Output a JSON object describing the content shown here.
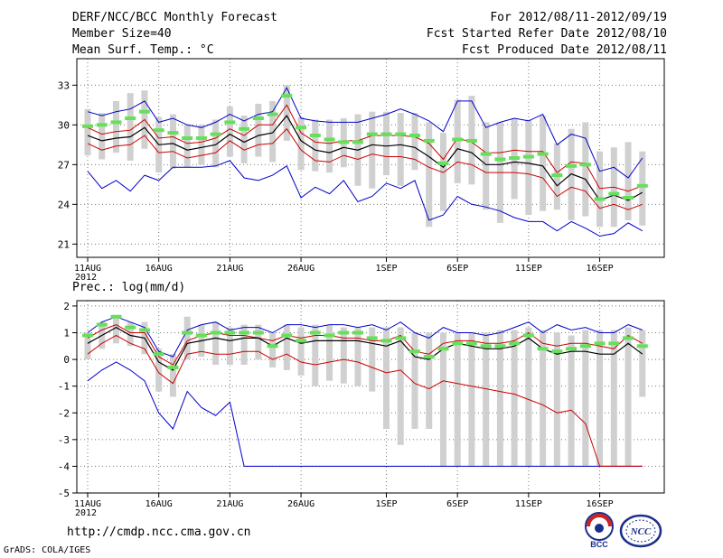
{
  "header": {
    "title": "DERF/NCC/BCC Monthly Forecast",
    "member_size": "Member Size=40",
    "variable": "Mean Surf. Temp.: °C",
    "period": "For 2012/08/11-2012/09/19",
    "fcst_started": "Fcst Started Refer Date 2012/08/10",
    "fcst_produced": "Fcst Produced Date 2012/08/11"
  },
  "footer": {
    "url": "http://cmdp.ncc.cma.gov.cn",
    "credit": "GrADS: COLA/IGES",
    "logo_left_text": "BCC",
    "logo_right_text": "NCC"
  },
  "colors": {
    "box": "#d0d0d0",
    "ensemble_mean": "#000000",
    "plus_minus_sd": "#cc0000",
    "max_min": "#0000cc",
    "forecast_marker": "#66e05a",
    "grid": "#777777"
  },
  "chart_data": [
    {
      "type": "line",
      "title": "Mean Surf. Temp.: °C",
      "x_start_label": "11AUG",
      "x_year_label": "2012",
      "days": 40,
      "xticks": [
        {
          "day": 0,
          "label": "11AUG"
        },
        {
          "day": 5,
          "label": "16AUG"
        },
        {
          "day": 10,
          "label": "21AUG"
        },
        {
          "day": 15,
          "label": "26AUG"
        },
        {
          "day": 21,
          "label": "1SEP"
        },
        {
          "day": 26,
          "label": "6SEP"
        },
        {
          "day": 31,
          "label": "11SEP"
        },
        {
          "day": 36,
          "label": "16SEP"
        }
      ],
      "ylim": [
        20,
        35
      ],
      "yticks": [
        21,
        24,
        27,
        30,
        33
      ],
      "series": [
        {
          "name": "max",
          "values": [
            31.0,
            30.7,
            31.0,
            31.2,
            31.8,
            30.2,
            30.5,
            30.0,
            29.8,
            30.2,
            30.8,
            30.3,
            30.8,
            31.0,
            32.8,
            30.5,
            30.3,
            30.2,
            30.2,
            30.2,
            30.5,
            30.8,
            31.2,
            30.8,
            30.3,
            29.5,
            31.8,
            31.8,
            29.8,
            30.2,
            30.5,
            30.3,
            30.8,
            28.5,
            29.3,
            29.0,
            26.5,
            26.8,
            26.0,
            27.5
          ]
        },
        {
          "name": "plus_sd",
          "values": [
            29.8,
            29.3,
            29.5,
            29.6,
            30.4,
            29.0,
            29.1,
            28.6,
            28.7,
            29.0,
            29.7,
            29.2,
            30.0,
            30.0,
            31.5,
            29.4,
            28.7,
            28.6,
            28.8,
            28.8,
            29.2,
            29.2,
            29.2,
            29.1,
            28.6,
            27.4,
            29.0,
            28.7,
            27.9,
            27.9,
            28.1,
            28.0,
            28.0,
            26.4,
            27.2,
            27.1,
            25.2,
            25.3,
            25.0,
            25.4
          ]
        },
        {
          "name": "mean",
          "values": [
            29.2,
            28.8,
            29.0,
            29.1,
            29.8,
            28.5,
            28.6,
            28.1,
            28.3,
            28.5,
            29.3,
            28.7,
            29.2,
            29.4,
            30.7,
            28.8,
            28.1,
            27.9,
            28.3,
            28.1,
            28.5,
            28.4,
            28.5,
            28.3,
            27.6,
            26.8,
            28.2,
            27.9,
            27.0,
            27.0,
            27.2,
            27.1,
            26.9,
            25.4,
            26.3,
            25.9,
            24.3,
            24.7,
            24.3,
            24.9
          ]
        },
        {
          "name": "minus_sd",
          "values": [
            28.6,
            28.1,
            28.4,
            28.5,
            29.2,
            27.9,
            28.0,
            27.5,
            27.7,
            27.9,
            28.8,
            28.1,
            28.5,
            28.6,
            29.7,
            28.1,
            27.3,
            27.2,
            27.7,
            27.4,
            27.8,
            27.6,
            27.6,
            27.4,
            26.8,
            26.4,
            27.2,
            27.0,
            26.4,
            26.4,
            26.4,
            26.3,
            26.0,
            24.6,
            25.3,
            25.0,
            23.7,
            24.0,
            23.6,
            24.0
          ]
        },
        {
          "name": "min",
          "values": [
            26.5,
            25.2,
            25.8,
            25.0,
            26.2,
            25.8,
            26.8,
            26.8,
            26.8,
            26.9,
            27.3,
            26.0,
            25.8,
            26.2,
            26.9,
            24.5,
            25.3,
            24.8,
            25.8,
            24.2,
            24.6,
            25.6,
            25.2,
            25.8,
            22.8,
            23.2,
            24.6,
            24.0,
            23.8,
            23.5,
            23.0,
            22.7,
            22.7,
            22.0,
            22.7,
            22.2,
            21.6,
            21.8,
            22.6,
            22.0
          ]
        },
        {
          "name": "forecast_marker",
          "values": [
            29.9,
            30.0,
            30.2,
            30.5,
            31.0,
            29.6,
            29.4,
            29.0,
            29.0,
            29.3,
            30.2,
            29.7,
            30.5,
            30.8,
            32.2,
            29.8,
            29.2,
            28.9,
            28.7,
            28.7,
            29.3,
            29.3,
            29.3,
            29.2,
            28.8,
            27.1,
            28.9,
            28.8,
            27.8,
            27.4,
            27.5,
            27.6,
            27.8,
            26.2,
            26.9,
            27.0,
            24.4,
            24.8,
            24.5,
            25.4
          ]
        },
        {
          "name": "box_top",
          "values": [
            31.2,
            30.9,
            31.8,
            32.4,
            32.6,
            30.6,
            30.8,
            30.0,
            30.0,
            30.4,
            31.4,
            30.7,
            31.6,
            31.8,
            33.0,
            30.6,
            30.4,
            30.4,
            30.5,
            30.8,
            31.0,
            31.0,
            30.9,
            30.9,
            30.2,
            29.4,
            31.9,
            32.2,
            30.2,
            30.2,
            30.5,
            30.4,
            30.7,
            28.6,
            29.7,
            30.2,
            28.0,
            28.3,
            28.7,
            28.0
          ]
        },
        {
          "name": "box_bottom",
          "values": [
            27.7,
            27.4,
            27.9,
            27.3,
            28.2,
            26.4,
            26.7,
            26.8,
            27.0,
            26.8,
            27.6,
            27.1,
            27.6,
            27.2,
            28.8,
            26.6,
            26.5,
            26.4,
            26.8,
            25.4,
            25.2,
            26.2,
            25.4,
            26.6,
            22.3,
            23.5,
            25.6,
            25.5,
            23.6,
            22.6,
            24.4,
            23.2,
            23.5,
            23.6,
            22.8,
            23.1,
            22.3,
            22.3,
            22.8,
            22.4
          ]
        }
      ]
    },
    {
      "type": "line",
      "title": "Prec.: log(mm/d)",
      "x_start_label": "11AUG",
      "x_year_label": "2012",
      "days": 40,
      "xticks": [
        {
          "day": 0,
          "label": "11AUG"
        },
        {
          "day": 5,
          "label": "16AUG"
        },
        {
          "day": 10,
          "label": "21AUG"
        },
        {
          "day": 15,
          "label": "26AUG"
        },
        {
          "day": 21,
          "label": "1SEP"
        },
        {
          "day": 26,
          "label": "6SEP"
        },
        {
          "day": 31,
          "label": "11SEP"
        },
        {
          "day": 36,
          "label": "16SEP"
        }
      ],
      "ylim": [
        -5,
        2.2
      ],
      "yticks": [
        -5,
        -4,
        -3,
        -2,
        -1,
        0,
        1,
        2
      ],
      "series": [
        {
          "name": "max",
          "values": [
            1.0,
            1.4,
            1.6,
            1.4,
            1.2,
            0.3,
            0.1,
            1.1,
            1.3,
            1.4,
            1.1,
            1.2,
            1.2,
            1.0,
            1.3,
            1.3,
            1.2,
            1.3,
            1.3,
            1.2,
            1.3,
            1.1,
            1.4,
            1.0,
            0.8,
            1.2,
            1.0,
            1.0,
            0.9,
            1.0,
            1.2,
            1.4,
            1.0,
            1.3,
            1.1,
            1.2,
            1.0,
            1.0,
            1.3,
            1.1
          ]
        },
        {
          "name": "plus_sd",
          "values": [
            0.8,
            1.1,
            1.3,
            1.0,
            1.0,
            0.1,
            -0.2,
            0.7,
            0.9,
            1.0,
            0.9,
            0.9,
            0.8,
            0.7,
            0.9,
            0.8,
            0.9,
            0.9,
            0.8,
            0.8,
            0.7,
            0.7,
            0.9,
            0.3,
            0.2,
            0.6,
            0.7,
            0.7,
            0.6,
            0.6,
            0.7,
            1.0,
            0.6,
            0.5,
            0.6,
            0.6,
            0.5,
            0.4,
            0.9,
            0.6
          ]
        },
        {
          "name": "mean",
          "values": [
            0.6,
            0.9,
            1.2,
            0.9,
            0.8,
            -0.1,
            -0.4,
            0.6,
            0.7,
            0.8,
            0.7,
            0.8,
            0.8,
            0.5,
            0.8,
            0.6,
            0.7,
            0.7,
            0.7,
            0.7,
            0.6,
            0.5,
            0.7,
            0.1,
            0.0,
            0.4,
            0.6,
            0.5,
            0.4,
            0.4,
            0.5,
            0.8,
            0.4,
            0.2,
            0.3,
            0.3,
            0.2,
            0.2,
            0.6,
            0.2
          ]
        },
        {
          "name": "minus_sd",
          "values": [
            0.2,
            0.6,
            0.9,
            0.6,
            0.4,
            -0.5,
            -0.9,
            0.2,
            0.3,
            0.2,
            0.2,
            0.3,
            0.3,
            0.0,
            0.2,
            -0.1,
            -0.2,
            -0.1,
            0.0,
            -0.1,
            -0.3,
            -0.5,
            -0.4,
            -0.9,
            -1.1,
            -0.8,
            -0.9,
            -1.0,
            -1.1,
            -1.2,
            -1.3,
            -1.5,
            -1.7,
            -2.0,
            -1.9,
            -2.4,
            -4.0,
            -4.0,
            -4.0,
            -4.0
          ]
        },
        {
          "name": "min",
          "values": [
            -0.8,
            -0.4,
            -0.1,
            -0.4,
            -0.8,
            -2.0,
            -2.6,
            -1.2,
            -1.8,
            -2.1,
            -1.6,
            -4.0,
            -4.0,
            -4.0,
            -4.0,
            -4.0,
            -4.0,
            -4.0,
            -4.0,
            -4.0,
            -4.0,
            -4.0,
            -4.0,
            -4.0,
            -4.0,
            -4.0,
            -4.0,
            -4.0,
            -4.0,
            -4.0,
            -4.0,
            -4.0,
            -4.0,
            -4.0,
            -4.0,
            -4.0,
            -4.0,
            -4.0,
            -4.0,
            -4.0
          ]
        },
        {
          "name": "forecast_marker",
          "values": [
            0.9,
            1.3,
            1.6,
            1.2,
            1.1,
            0.2,
            -0.3,
            1.0,
            0.9,
            1.0,
            1.0,
            1.0,
            1.0,
            0.5,
            0.9,
            0.7,
            1.0,
            0.9,
            1.0,
            1.0,
            0.8,
            0.7,
            0.8,
            0.3,
            0.1,
            0.4,
            0.6,
            0.6,
            0.5,
            0.5,
            0.6,
            0.9,
            0.4,
            0.3,
            0.4,
            0.5,
            0.6,
            0.6,
            0.8,
            0.5
          ]
        },
        {
          "name": "box_top",
          "values": [
            1.0,
            1.4,
            1.6,
            1.4,
            1.4,
            0.4,
            0.2,
            1.6,
            1.3,
            1.4,
            1.2,
            1.3,
            1.3,
            1.0,
            1.3,
            1.2,
            1.3,
            1.3,
            1.2,
            1.2,
            1.2,
            1.2,
            1.2,
            1.0,
            1.0,
            1.0,
            1.0,
            1.0,
            1.0,
            1.1,
            1.1,
            1.2,
            1.1,
            1.0,
            0.9,
            1.1,
            1.1,
            1.1,
            1.2,
            1.1
          ]
        },
        {
          "name": "box_bottom",
          "values": [
            0.0,
            0.4,
            0.6,
            0.5,
            0.2,
            -1.2,
            -1.4,
            0.0,
            0.1,
            -0.2,
            -0.2,
            -0.2,
            0.0,
            -0.3,
            -0.4,
            -0.6,
            -1.0,
            -0.8,
            -0.9,
            -1.0,
            -1.2,
            -2.6,
            -3.2,
            -2.6,
            -2.6,
            -4.0,
            -4.0,
            -4.0,
            -4.0,
            -4.0,
            -4.0,
            -4.0,
            -4.0,
            -4.0,
            -4.0,
            -4.0,
            -4.0,
            -4.0,
            -4.0,
            -1.4
          ]
        }
      ]
    }
  ]
}
